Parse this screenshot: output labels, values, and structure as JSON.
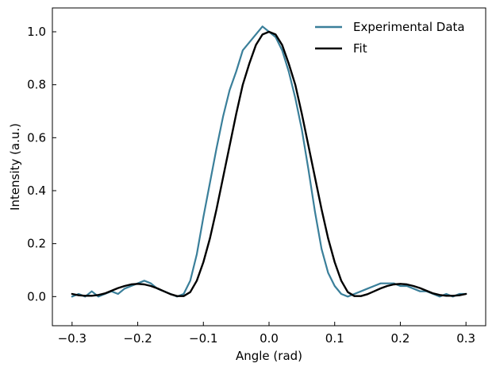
{
  "chart_data": {
    "type": "line",
    "title": "",
    "xlabel": "Angle (rad)",
    "ylabel": "Intensity (a.u.)",
    "xlim": [
      -0.33,
      0.33
    ],
    "ylim": [
      -0.11,
      1.09
    ],
    "xticks": [
      -0.3,
      -0.2,
      -0.1,
      0.0,
      0.1,
      0.2,
      0.3
    ],
    "xtick_labels": [
      "−0.3",
      "−0.2",
      "−0.1",
      "0.0",
      "0.1",
      "0.2",
      "0.3"
    ],
    "yticks": [
      0.0,
      0.2,
      0.4,
      0.6,
      0.8,
      1.0
    ],
    "ytick_labels": [
      "0.0",
      "0.2",
      "0.4",
      "0.6",
      "0.8",
      "1.0"
    ],
    "grid": false,
    "legend_position": "top-right",
    "series": [
      {
        "name": "Experimental Data",
        "color": "#3a7f9a",
        "x": [
          -0.3,
          -0.29,
          -0.28,
          -0.27,
          -0.26,
          -0.25,
          -0.24,
          -0.23,
          -0.22,
          -0.21,
          -0.2,
          -0.19,
          -0.18,
          -0.17,
          -0.16,
          -0.15,
          -0.14,
          -0.13,
          -0.12,
          -0.11,
          -0.1,
          -0.09,
          -0.08,
          -0.07,
          -0.06,
          -0.05,
          -0.04,
          -0.03,
          -0.02,
          -0.01,
          0.0,
          0.01,
          0.02,
          0.03,
          0.04,
          0.05,
          0.06,
          0.07,
          0.08,
          0.09,
          0.1,
          0.11,
          0.12,
          0.13,
          0.14,
          0.15,
          0.16,
          0.17,
          0.18,
          0.19,
          0.2,
          0.21,
          0.22,
          0.23,
          0.24,
          0.25,
          0.26,
          0.27,
          0.28,
          0.29,
          0.3
        ],
        "y": [
          0.0,
          0.01,
          0.0,
          0.02,
          0.0,
          0.01,
          0.02,
          0.01,
          0.03,
          0.04,
          0.05,
          0.06,
          0.05,
          0.03,
          0.02,
          0.01,
          0.0,
          0.01,
          0.06,
          0.16,
          0.3,
          0.43,
          0.56,
          0.68,
          0.78,
          0.85,
          0.93,
          0.96,
          0.99,
          1.02,
          1.0,
          0.98,
          0.93,
          0.85,
          0.75,
          0.63,
          0.48,
          0.32,
          0.18,
          0.09,
          0.04,
          0.01,
          0.0,
          0.01,
          0.02,
          0.03,
          0.04,
          0.05,
          0.05,
          0.05,
          0.04,
          0.04,
          0.03,
          0.02,
          0.02,
          0.01,
          0.0,
          0.01,
          0.0,
          0.01,
          0.01
        ]
      },
      {
        "name": "Fit",
        "color": "#000000",
        "x": [
          -0.3,
          -0.29,
          -0.28,
          -0.27,
          -0.26,
          -0.25,
          -0.24,
          -0.23,
          -0.22,
          -0.21,
          -0.2,
          -0.19,
          -0.18,
          -0.17,
          -0.16,
          -0.15,
          -0.14,
          -0.13,
          -0.12,
          -0.11,
          -0.1,
          -0.09,
          -0.08,
          -0.07,
          -0.06,
          -0.05,
          -0.04,
          -0.03,
          -0.02,
          -0.01,
          0.0,
          0.01,
          0.02,
          0.03,
          0.04,
          0.05,
          0.06,
          0.07,
          0.08,
          0.09,
          0.1,
          0.11,
          0.12,
          0.13,
          0.14,
          0.15,
          0.16,
          0.17,
          0.18,
          0.19,
          0.2,
          0.21,
          0.22,
          0.23,
          0.24,
          0.25,
          0.26,
          0.27,
          0.28,
          0.29,
          0.3
        ],
        "y": [
          0.01,
          0.005,
          0.003,
          0.003,
          0.006,
          0.012,
          0.022,
          0.032,
          0.04,
          0.046,
          0.048,
          0.046,
          0.04,
          0.031,
          0.02,
          0.009,
          0.002,
          0.002,
          0.017,
          0.06,
          0.13,
          0.22,
          0.33,
          0.45,
          0.57,
          0.69,
          0.8,
          0.88,
          0.95,
          0.99,
          1.0,
          0.99,
          0.95,
          0.88,
          0.8,
          0.69,
          0.57,
          0.45,
          0.33,
          0.22,
          0.13,
          0.06,
          0.017,
          0.002,
          0.002,
          0.009,
          0.02,
          0.031,
          0.04,
          0.046,
          0.048,
          0.046,
          0.04,
          0.032,
          0.022,
          0.012,
          0.006,
          0.003,
          0.003,
          0.005,
          0.01
        ]
      }
    ]
  }
}
